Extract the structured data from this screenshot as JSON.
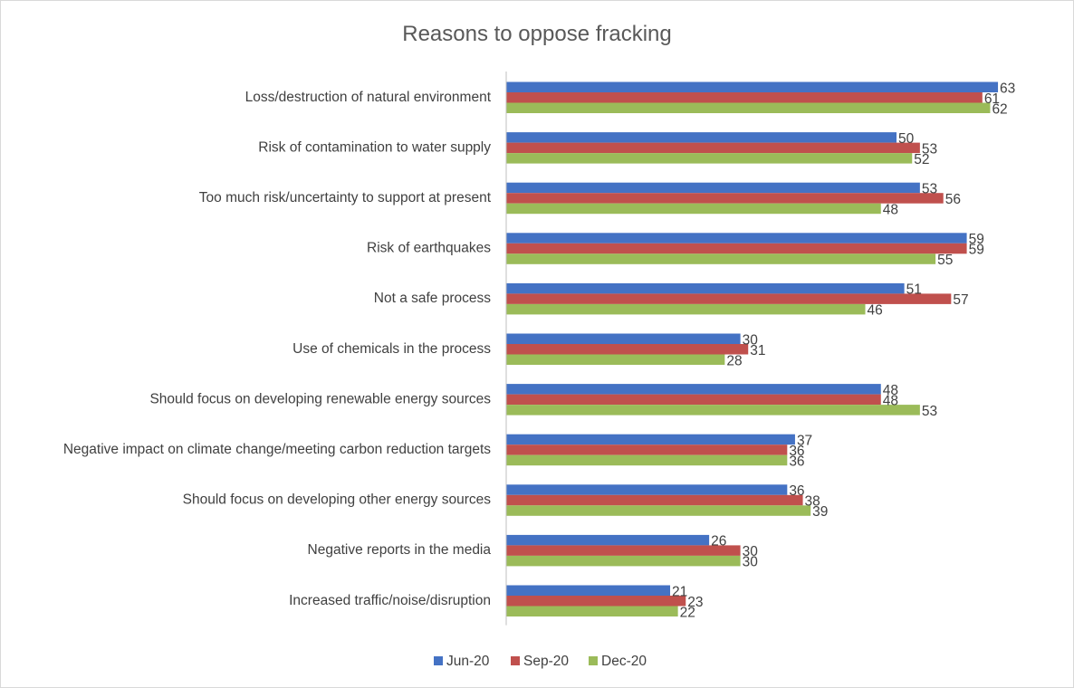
{
  "chart_data": {
    "type": "bar",
    "orientation": "horizontal",
    "title": "Reasons to oppose fracking",
    "xlim": [
      0,
      63
    ],
    "legend_position": "bottom",
    "categories": [
      "Loss/destruction of natural environment",
      "Risk of contamination to water supply",
      "Too much risk/uncertainty to support at present",
      "Risk of earthquakes",
      "Not a safe process",
      "Use of chemicals in the process",
      "Should focus on developing renewable energy sources",
      "Negative impact on climate change/meeting carbon reduction targets",
      "Should focus on developing other energy sources",
      "Negative reports in the media",
      "Increased traffic/noise/disruption"
    ],
    "series": [
      {
        "name": "Jun-20",
        "color": "#4472c4",
        "values": [
          63,
          50,
          53,
          59,
          51,
          30,
          48,
          37,
          36,
          26,
          21
        ]
      },
      {
        "name": "Sep-20",
        "color": "#c0504d",
        "values": [
          61,
          53,
          56,
          59,
          57,
          31,
          48,
          36,
          38,
          30,
          23
        ]
      },
      {
        "name": "Dec-20",
        "color": "#9bbb59",
        "values": [
          62,
          52,
          48,
          55,
          46,
          28,
          53,
          36,
          39,
          30,
          22
        ]
      }
    ]
  }
}
